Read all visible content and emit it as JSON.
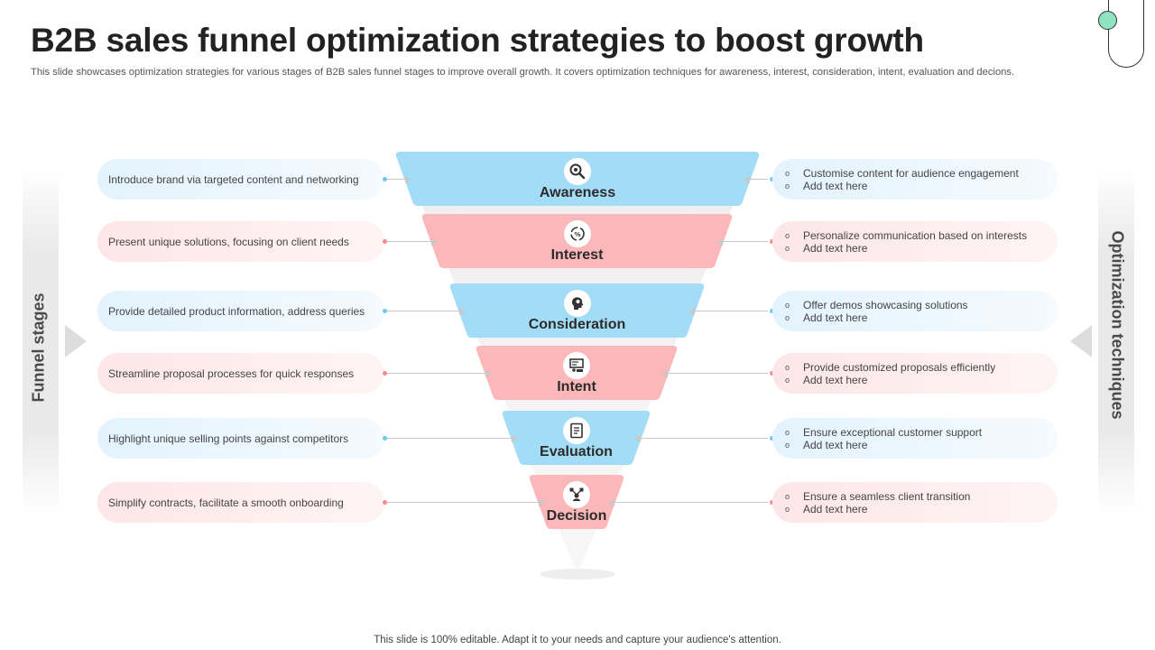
{
  "header": {
    "title": "B2B sales funnel optimization strategies to boost growth",
    "subtitle": "This slide showcases optimization strategies for various stages of B2B sales funnel stages to improve overall growth. It covers optimization techniques for awareness, interest, consideration, intent, evaluation and decions."
  },
  "side_labels": {
    "left": "Funnel stages",
    "right": "Optimization techniques"
  },
  "colors": {
    "blue": "#a3dcf7",
    "pink": "#fbb7b9",
    "blue_dot": "#6fc7f0",
    "pink_dot": "#f48c8f"
  },
  "stages": [
    {
      "name": "Awareness",
      "icon": "brand-search-icon",
      "color": "blue",
      "stage_text": "Introduce brand via targeted content and networking",
      "techniques": [
        "Customise content for audience engagement",
        "Add text here"
      ]
    },
    {
      "name": "Interest",
      "icon": "interest-cycle-icon",
      "color": "pink",
      "stage_text": "Present unique solutions, focusing on client needs",
      "techniques": [
        "Personalize communication based on interests",
        "Add text here"
      ]
    },
    {
      "name": "Consideration",
      "icon": "thinking-head-icon",
      "color": "blue",
      "stage_text": "Provide detailed product information, address queries",
      "techniques": [
        "Offer demos showcasing solutions",
        "Add text here"
      ]
    },
    {
      "name": "Intent",
      "icon": "presentation-board-icon",
      "color": "pink",
      "stage_text": "Streamline proposal processes for quick responses",
      "techniques": [
        "Provide customized proposals efficiently",
        "Add text here"
      ]
    },
    {
      "name": "Evaluation",
      "icon": "checklist-icon",
      "color": "blue",
      "stage_text": "Highlight unique selling points against competitors",
      "techniques": [
        "Ensure exceptional customer support",
        "Add text here"
      ]
    },
    {
      "name": "Decision",
      "icon": "decision-network-icon",
      "color": "pink",
      "stage_text": "Simplify contracts, facilitate a smooth onboarding",
      "techniques": [
        "Ensure a seamless client transition",
        "Add text here"
      ]
    }
  ],
  "footer": "This slide is 100% editable. Adapt it to your needs and capture your audience's attention."
}
